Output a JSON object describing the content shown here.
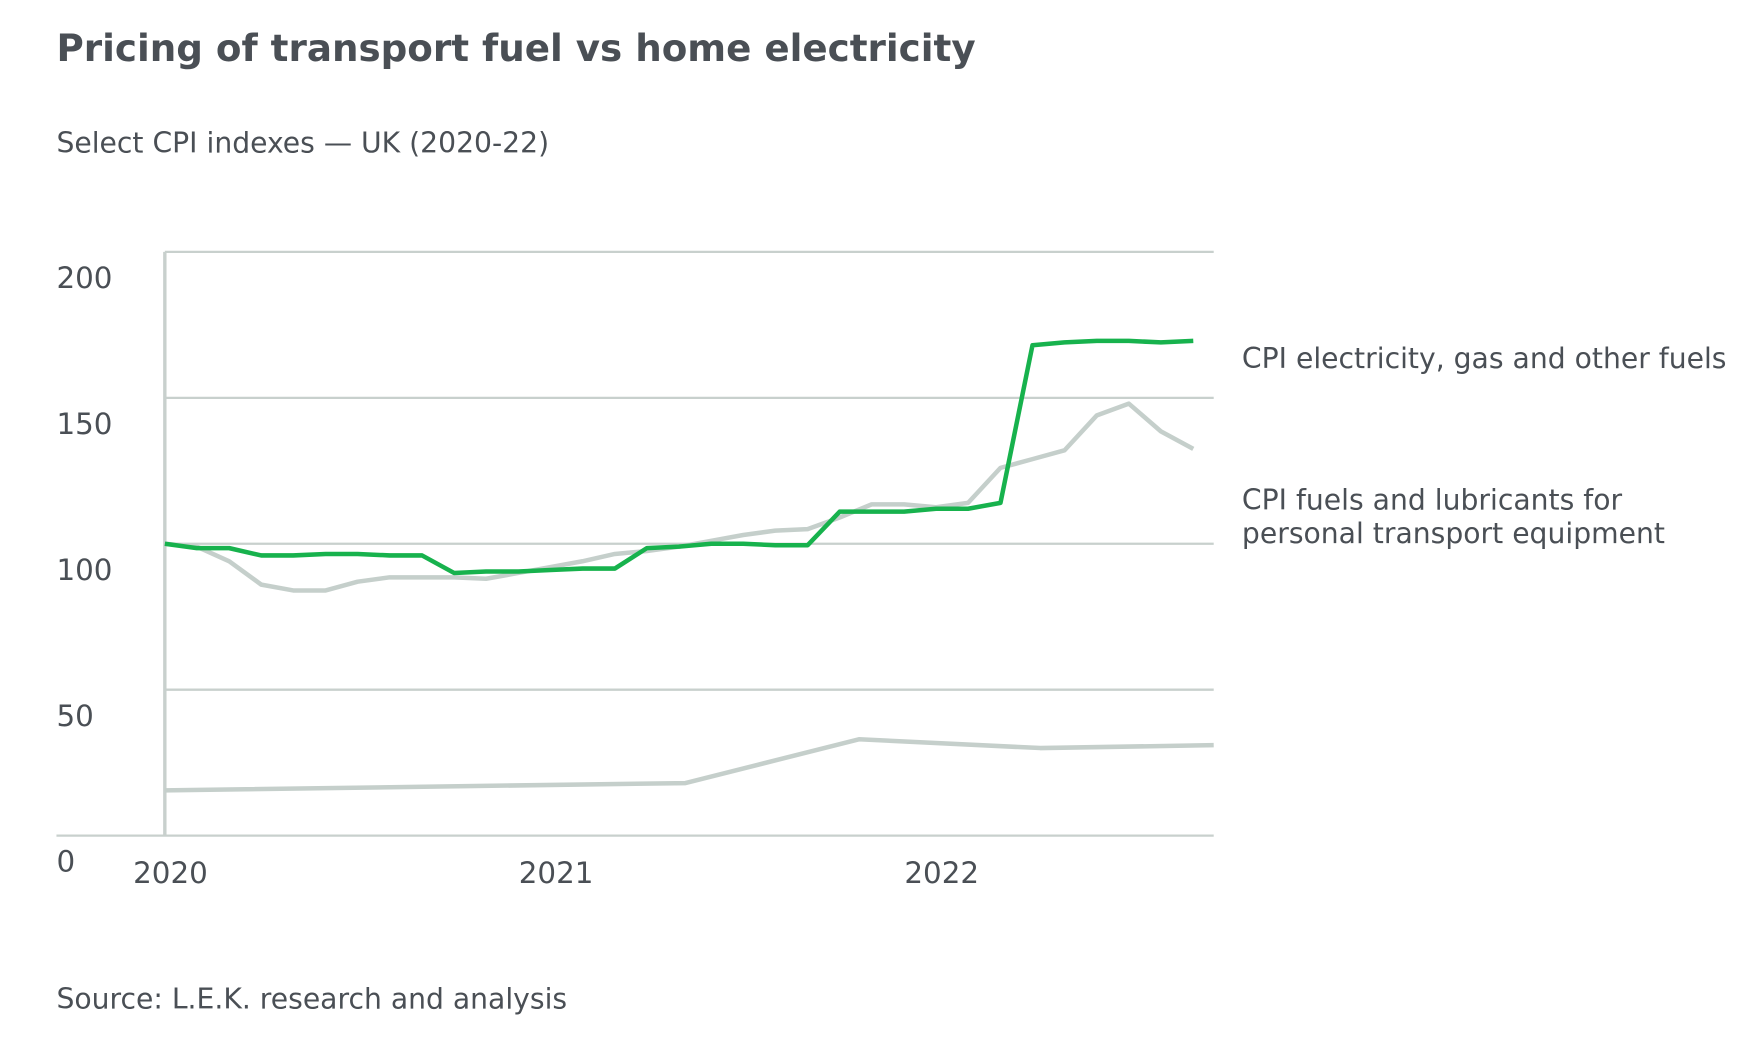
{
  "chart_data": {
    "type": "line",
    "title": "Pricing of transport fuel vs home electricity",
    "subtitle": "Select CPI indexes — UK (2020-22)",
    "source": "Source: L.E.K. research and analysis",
    "x": [
      2020,
      2020.083,
      2020.167,
      2020.25,
      2020.333,
      2020.417,
      2020.5,
      2020.583,
      2020.667,
      2020.75,
      2020.833,
      2020.917,
      2021,
      2021.083,
      2021.167,
      2021.25,
      2021.333,
      2021.417,
      2021.5,
      2021.583,
      2021.667,
      2021.75,
      2021.833,
      2021.917,
      2022,
      2022.083,
      2022.167,
      2022.25,
      2022.333,
      2022.417,
      2022.5,
      2022.583,
      2022.667
    ],
    "series": [
      {
        "name": "CPI electricity, gas and other fuels",
        "color": "#17b24d",
        "values": [
          100,
          98.5,
          98.5,
          96,
          96,
          96.5,
          96.5,
          96,
          96,
          90,
          90.5,
          90.5,
          91,
          91.5,
          91.5,
          98.5,
          99,
          100,
          100,
          99.5,
          99.5,
          111,
          111,
          111,
          112,
          112,
          114,
          168,
          169,
          169.5,
          169.5,
          169,
          169.5
        ]
      },
      {
        "name": "CPI fuels and lubricants for personal transport equipment",
        "color": "#c5cfcb",
        "values": [
          100,
          99,
          94,
          86,
          84,
          84,
          87,
          88.5,
          88.5,
          88.5,
          88,
          90,
          92,
          94,
          96.5,
          97.5,
          99,
          101,
          103,
          104.5,
          105,
          109,
          113.5,
          113.5,
          112.5,
          114,
          126,
          129,
          132,
          144,
          148,
          138.5,
          132.5
        ]
      },
      {
        "color": "#c5cfcb",
        "x": [
          2020,
          2021.35,
          2021.8,
          2022.27,
          2022.72
        ],
        "values": [
          15.5,
          18,
          33,
          30,
          31
        ]
      }
    ],
    "xlim": [
      2020,
      2022.72
    ],
    "xticks": [
      2020,
      2021,
      2022
    ],
    "ylim": [
      0,
      200
    ],
    "yticks": [
      0,
      50,
      100,
      150,
      200
    ],
    "grid": true
  }
}
